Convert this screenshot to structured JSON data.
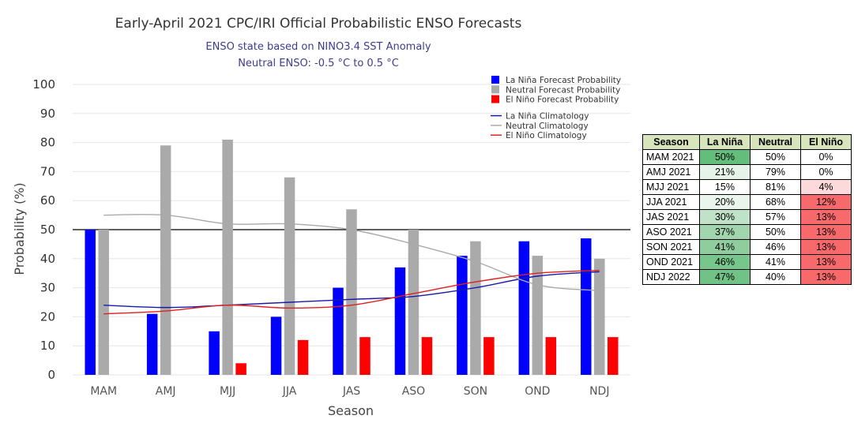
{
  "chart_data": {
    "type": "bar",
    "title": "Early-April 2021 CPC/IRI Official Probabilistic ENSO Forecasts",
    "subtitle_lines": [
      "ENSO state based on NINO3.4 SST Anomaly",
      "Neutral ENSO: -0.5 °C to 0.5 °C"
    ],
    "xlabel": "Season",
    "ylabel": "Probability (%)",
    "ylim": [
      0,
      100
    ],
    "yticks": [
      "0",
      "10",
      "20",
      "30",
      "40",
      "50",
      "60",
      "70",
      "80",
      "90",
      "100"
    ],
    "reference_line_value": 50,
    "grid": true,
    "legend_position": "top-right",
    "categories": [
      "MAM",
      "AMJ",
      "MJJ",
      "JJA",
      "JAS",
      "ASO",
      "SON",
      "OND",
      "NDJ"
    ],
    "series": [
      {
        "name": "La Niña Forecast Probability",
        "kind": "bar",
        "color": "#0000ff",
        "values": [
          50,
          21,
          15,
          20,
          30,
          37,
          41,
          46,
          47
        ]
      },
      {
        "name": "Neutral Forecast Probability",
        "kind": "bar",
        "color": "#aaaaaa",
        "values": [
          50,
          79,
          81,
          68,
          57,
          50,
          46,
          41,
          40
        ]
      },
      {
        "name": "El Niño Forecast Probability",
        "kind": "bar",
        "color": "#ff0000",
        "values": [
          0,
          0,
          4,
          12,
          13,
          13,
          13,
          13,
          13
        ]
      },
      {
        "name": "La Niña Climatology",
        "kind": "line",
        "color": "#1a1aa8",
        "values": [
          24,
          23.2,
          24,
          25,
          26,
          27,
          30,
          34,
          35.5
        ]
      },
      {
        "name": "Neutral Climatology",
        "kind": "line",
        "color": "#aaaaaa",
        "values": [
          55,
          55,
          52,
          52,
          50,
          45,
          39,
          31,
          29
        ]
      },
      {
        "name": "El Niño Climatology",
        "kind": "line",
        "color": "#e02020",
        "values": [
          21,
          22,
          24,
          23,
          24,
          28,
          32,
          35,
          36
        ]
      }
    ]
  },
  "table": {
    "headers": [
      "Season",
      "La Niña",
      "Neutral",
      "El Niño"
    ],
    "rows": [
      {
        "season": "MAM 2021",
        "la_nina": "50%",
        "neutral": "50%",
        "el_nino": "0%",
        "la_nina_color": "#63be7b",
        "el_nino_color": "#ffffff"
      },
      {
        "season": "AMJ 2021",
        "la_nina": "21%",
        "neutral": "79%",
        "el_nino": "0%",
        "la_nina_color": "#e6f3e9",
        "el_nino_color": "#ffffff"
      },
      {
        "season": "MJJ 2021",
        "la_nina": "15%",
        "neutral": "81%",
        "el_nino": "4%",
        "la_nina_color": "#ffffff",
        "el_nino_color": "#fcdadb"
      },
      {
        "season": "JJA 2021",
        "la_nina": "20%",
        "neutral": "68%",
        "el_nino": "12%",
        "la_nina_color": "#eaf5ed",
        "el_nino_color": "#f8696b"
      },
      {
        "season": "JAS 2021",
        "la_nina": "30%",
        "neutral": "57%",
        "el_nino": "13%",
        "la_nina_color": "#bfe2c8",
        "el_nino_color": "#f8696b"
      },
      {
        "season": "ASO 2021",
        "la_nina": "37%",
        "neutral": "50%",
        "el_nino": "13%",
        "la_nina_color": "#a1d5ae",
        "el_nino_color": "#f8696b"
      },
      {
        "season": "SON 2021",
        "la_nina": "41%",
        "neutral": "46%",
        "el_nino": "13%",
        "la_nina_color": "#8fcd9f",
        "el_nino_color": "#f8696b"
      },
      {
        "season": "OND 2021",
        "la_nina": "46%",
        "neutral": "41%",
        "el_nino": "13%",
        "la_nina_color": "#77c68c",
        "el_nino_color": "#f8696b"
      },
      {
        "season": "NDJ 2022",
        "la_nina": "47%",
        "neutral": "40%",
        "el_nino": "13%",
        "la_nina_color": "#70c286",
        "el_nino_color": "#f8696b"
      }
    ]
  }
}
